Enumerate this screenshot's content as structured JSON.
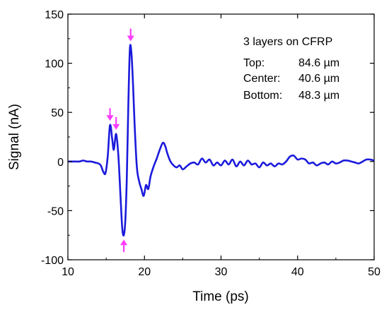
{
  "chart_data": {
    "type": "line",
    "xlabel": "Time (ps)",
    "ylabel": "Signal (nA)",
    "xlim": [
      10,
      50
    ],
    "ylim": [
      -100,
      150
    ],
    "xticks": [
      10,
      20,
      30,
      40,
      50
    ],
    "yticks": [
      -100,
      -50,
      0,
      50,
      100,
      150
    ],
    "grid": false,
    "series": [
      {
        "color": "#1a1adc",
        "x": [
          10,
          10.5,
          11,
          11.5,
          12,
          12.5,
          13,
          13.5,
          14,
          14.3,
          14.6,
          14.9,
          15.2,
          15.5,
          15.8,
          16.0,
          16.3,
          16.6,
          16.9,
          17.1,
          17.3,
          17.5,
          17.7,
          17.9,
          18.1,
          18.3,
          18.5,
          18.7,
          19.0,
          19.3,
          19.6,
          19.9,
          20.2,
          20.5,
          20.8,
          21.2,
          21.6,
          22.0,
          22.4,
          22.7,
          23.0,
          23.4,
          23.8,
          24.2,
          24.6,
          25.0,
          25.5,
          26.0,
          26.5,
          27.0,
          27.5,
          28.0,
          28.5,
          29.0,
          29.5,
          30.0,
          30.5,
          31.0,
          31.5,
          32.0,
          32.5,
          33.0,
          33.5,
          34.0,
          34.5,
          35.0,
          35.5,
          36.0,
          36.5,
          37.0,
          37.5,
          38.0,
          38.5,
          39.0,
          39.5,
          40.0,
          40.5,
          41.0,
          41.5,
          42.0,
          42.5,
          43.0,
          43.5,
          44.0,
          44.5,
          45.0,
          45.5,
          46.0,
          46.5,
          47.0,
          47.5,
          48.0,
          48.5,
          49.0,
          49.5,
          50.0
        ],
        "y": [
          0,
          0,
          0,
          0,
          1,
          0,
          0,
          -1,
          -2,
          -4,
          -10,
          -12,
          5,
          37,
          22,
          12,
          28,
          5,
          -40,
          -68,
          -75,
          -60,
          -15,
          60,
          115,
          110,
          80,
          40,
          -5,
          -20,
          -28,
          -35,
          -24,
          -28,
          -15,
          -5,
          3,
          12,
          19,
          16,
          8,
          0,
          -4,
          -6,
          -4,
          -8,
          -5,
          -2,
          -1,
          -3,
          3,
          -1,
          2,
          -4,
          -1,
          -4,
          1,
          -3,
          2,
          -5,
          0,
          -4,
          1,
          -3,
          -2,
          -6,
          -1,
          -4,
          -2,
          -5,
          -2,
          -3,
          0,
          5,
          6,
          2,
          3,
          2,
          -2,
          -1,
          -4,
          -2,
          -1,
          -3,
          0,
          -2,
          -1,
          1,
          1,
          0,
          -1,
          -2,
          0,
          2,
          2,
          1
        ]
      }
    ],
    "annotations": {
      "lines": [
        "3 layers on CFRP",
        "Top:",
        "84.6 µm",
        "Center:",
        "40.6 µm",
        "Bottom:",
        "48.3 µm"
      ],
      "arrows": [
        {
          "x": 15.5,
          "y": 37,
          "direction": "down"
        },
        {
          "x": 16.3,
          "y": 28,
          "direction": "down"
        },
        {
          "x": 18.2,
          "y": 118,
          "direction": "down"
        },
        {
          "x": 17.3,
          "y": -75,
          "direction": "up"
        }
      ],
      "arrow_color": "#ff3cff"
    }
  }
}
